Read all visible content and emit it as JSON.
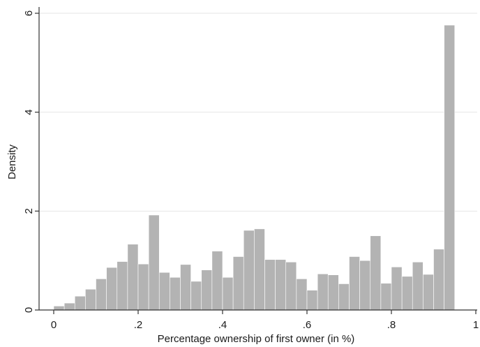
{
  "chart_data": {
    "type": "bar",
    "xlabel": "Percentage ownership of first owner (in %)",
    "ylabel": "Density",
    "xlim": [
      0,
      1
    ],
    "ylim": [
      0,
      6
    ],
    "grid": true,
    "bar_color": "#b3b3b3",
    "axis_color": "#333333",
    "x_ticks": [
      {
        "value": 0,
        "label": "0"
      },
      {
        "value": 0.2,
        "label": ".2"
      },
      {
        "value": 0.4,
        "label": ".4"
      },
      {
        "value": 0.6,
        "label": ".6"
      },
      {
        "value": 0.8,
        "label": ".8"
      },
      {
        "value": 1,
        "label": "1"
      }
    ],
    "y_ticks": [
      {
        "value": 0,
        "label": "0"
      },
      {
        "value": 2,
        "label": "2"
      },
      {
        "value": 4,
        "label": "4"
      },
      {
        "value": 6,
        "label": "6"
      }
    ],
    "bin_start": 0,
    "bin_width": 0.025,
    "values": [
      0.08,
      0.14,
      0.28,
      0.42,
      0.63,
      0.86,
      0.98,
      1.33,
      0.93,
      1.92,
      0.76,
      0.66,
      0.92,
      0.58,
      0.81,
      1.19,
      0.66,
      1.08,
      1.61,
      1.64,
      1.02,
      1.02,
      0.97,
      0.63,
      0.4,
      0.73,
      0.71,
      0.53,
      1.08,
      1.0,
      1.5,
      0.54,
      0.87,
      0.68,
      0.97,
      0.72,
      1.23,
      5.76
    ]
  }
}
